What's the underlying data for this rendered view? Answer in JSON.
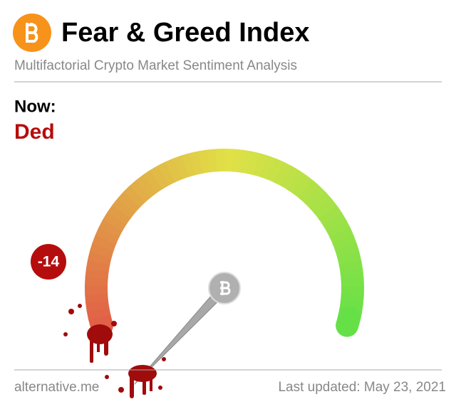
{
  "header": {
    "title": "Fear & Greed Index",
    "subtitle": "Multifactorial Crypto Market Sentiment Analysis"
  },
  "now": {
    "label": "Now:",
    "status": "Ded"
  },
  "chart_data": {
    "type": "gauge",
    "value": -14,
    "range": [
      0,
      100
    ],
    "needle_color": "#a8a8a8",
    "badge_color": "#b50d0d"
  },
  "footer": {
    "source": "alternative.me",
    "updated": "Last updated: May 23, 2021"
  }
}
